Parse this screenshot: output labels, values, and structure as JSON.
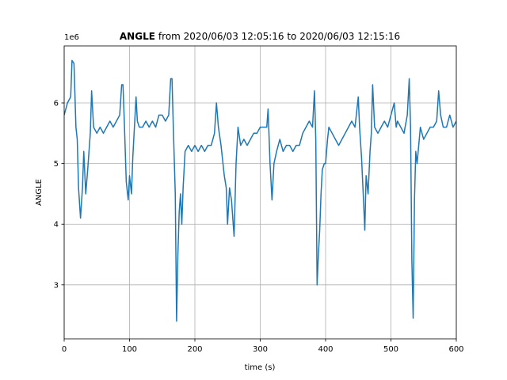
{
  "chart_data": {
    "type": "line",
    "title_bold": "ANGLE",
    "title": "from 2020/06/03 12:05:16 to 2020/06/03 12:15:16",
    "xlabel": "time (s)",
    "ylabel": "ANGLE",
    "y_offset_label": "1e6",
    "xlim": [
      0,
      600
    ],
    "xticks": [
      0,
      100,
      200,
      300,
      400,
      500,
      600
    ],
    "ylim": [
      2.11,
      6.94
    ],
    "yticks": [
      3,
      4,
      5,
      6
    ],
    "grid": true,
    "series": [
      {
        "name": "ANGLE",
        "color": "#1f77b4",
        "x": [
          0,
          5,
          10,
          12,
          15,
          18,
          20,
          22,
          25,
          28,
          30,
          33,
          36,
          40,
          42,
          45,
          50,
          55,
          60,
          65,
          70,
          75,
          80,
          85,
          88,
          90,
          92,
          95,
          98,
          100,
          103,
          105,
          110,
          112,
          115,
          120,
          125,
          130,
          135,
          140,
          145,
          150,
          155,
          160,
          163,
          165,
          167,
          170,
          172,
          174,
          176,
          178,
          180,
          182,
          185,
          190,
          195,
          200,
          205,
          210,
          215,
          220,
          225,
          230,
          233,
          236,
          240,
          245,
          248,
          250,
          253,
          256,
          260,
          263,
          266,
          270,
          275,
          280,
          285,
          290,
          295,
          300,
          305,
          310,
          312,
          315,
          318,
          321,
          325,
          330,
          335,
          340,
          345,
          350,
          355,
          360,
          365,
          370,
          375,
          380,
          383,
          385,
          387,
          389,
          391,
          393,
          395,
          398,
          400,
          403,
          405,
          410,
          415,
          420,
          425,
          430,
          435,
          440,
          445,
          450,
          452,
          455,
          458,
          460,
          462,
          465,
          468,
          470,
          472,
          475,
          480,
          485,
          490,
          495,
          500,
          505,
          508,
          510,
          515,
          520,
          525,
          528,
          530,
          532,
          534,
          536,
          538,
          540,
          545,
          550,
          555,
          560,
          565,
          570,
          573,
          576,
          580,
          585,
          590,
          595,
          600
        ],
        "values": [
          5.8,
          6.0,
          6.1,
          6.7,
          6.65,
          5.6,
          5.4,
          4.6,
          4.1,
          4.6,
          5.2,
          4.5,
          4.9,
          5.5,
          6.2,
          5.6,
          5.5,
          5.6,
          5.5,
          5.6,
          5.7,
          5.6,
          5.7,
          5.8,
          6.3,
          6.3,
          5.7,
          4.7,
          4.4,
          4.8,
          4.5,
          5.1,
          6.1,
          5.7,
          5.6,
          5.6,
          5.7,
          5.6,
          5.7,
          5.6,
          5.8,
          5.8,
          5.7,
          5.8,
          6.4,
          6.4,
          5.6,
          4.5,
          2.4,
          3.5,
          4.2,
          4.5,
          4.0,
          4.6,
          5.2,
          5.3,
          5.2,
          5.3,
          5.2,
          5.3,
          5.2,
          5.3,
          5.3,
          5.5,
          6.0,
          5.6,
          5.3,
          4.8,
          4.6,
          4.0,
          4.6,
          4.4,
          3.8,
          5.0,
          5.6,
          5.3,
          5.4,
          5.3,
          5.4,
          5.5,
          5.5,
          5.6,
          5.6,
          5.6,
          5.9,
          5.0,
          4.4,
          5.0,
          5.2,
          5.4,
          5.2,
          5.3,
          5.3,
          5.2,
          5.3,
          5.3,
          5.5,
          5.6,
          5.7,
          5.6,
          6.2,
          5.4,
          3.0,
          3.5,
          3.9,
          4.5,
          4.9,
          5.0,
          5.0,
          5.4,
          5.6,
          5.5,
          5.4,
          5.3,
          5.4,
          5.5,
          5.6,
          5.7,
          5.6,
          6.1,
          5.6,
          5.1,
          4.4,
          3.9,
          4.8,
          4.5,
          5.2,
          5.5,
          6.3,
          5.6,
          5.5,
          5.6,
          5.7,
          5.6,
          5.8,
          6.0,
          5.6,
          5.7,
          5.6,
          5.5,
          5.8,
          6.4,
          5.6,
          3.4,
          2.45,
          4.4,
          5.2,
          5.0,
          5.6,
          5.4,
          5.5,
          5.6,
          5.6,
          5.7,
          6.2,
          5.8,
          5.6,
          5.6,
          5.8,
          5.6,
          5.7
        ]
      }
    ]
  }
}
